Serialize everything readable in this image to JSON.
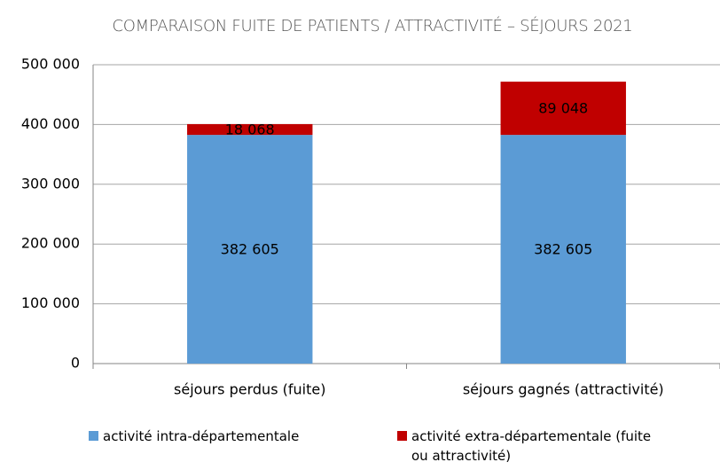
{
  "chart_data": {
    "type": "stacked_bar",
    "title": "COMPARAISON FUITE DE PATIENTS / ATTRACTIVITÉ – SÉJOURS 2021",
    "categories": [
      "séjours perdus (fuite)",
      "séjours gagnés (attractivité)"
    ],
    "series": [
      {
        "name": "activité intra-départementale",
        "color": "#5b9bd5",
        "values": [
          382605,
          382605
        ],
        "value_labels": [
          "382 605",
          "382 605"
        ]
      },
      {
        "name": "activité extra-départementale (fuite ou attractivité)",
        "color": "#c00000",
        "values": [
          18068,
          89048
        ],
        "value_labels": [
          "18 068",
          "89 048"
        ]
      }
    ],
    "ylim": [
      0,
      500000
    ],
    "yticks": [
      0,
      {
        "value": 100000,
        "label": "100 000"
      },
      {
        "value": 200000,
        "label": "200 000"
      },
      {
        "value": 300000,
        "label": "300 000"
      },
      {
        "value": 400000,
        "label": "400 000"
      },
      {
        "value": 500000,
        "label": "500 000"
      }
    ],
    "grid": true,
    "legend": "bottom"
  }
}
